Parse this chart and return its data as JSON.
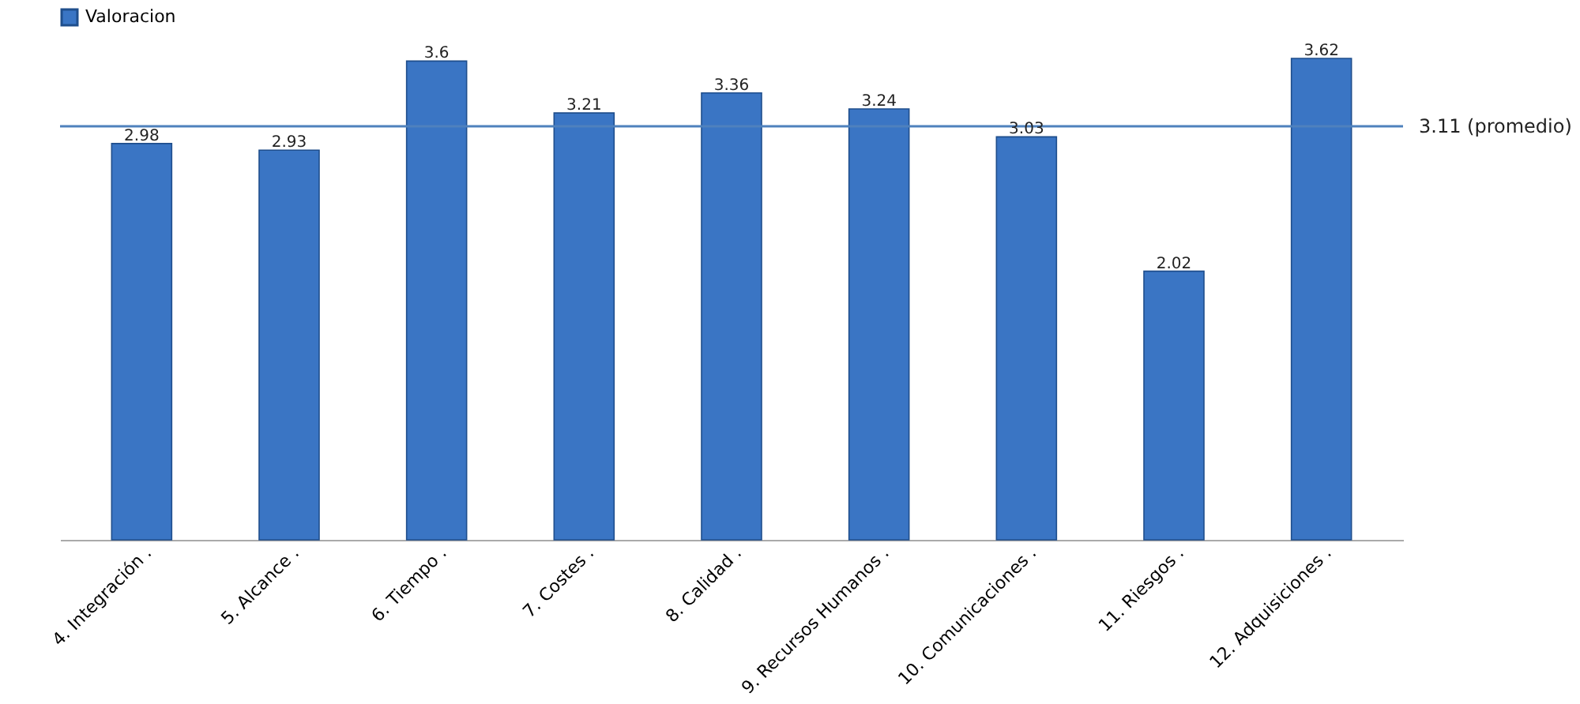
{
  "chart_data": {
    "type": "bar",
    "categories": [
      "4. Integración .",
      "5. Alcance .",
      "6. Tiempo .",
      "7. Costes .",
      "8. Calidad .",
      "9. Recursos Humanos .",
      "10. Comunicaciones .",
      "11. Riesgos .",
      "12. Adquisiciones ."
    ],
    "series": [
      {
        "name": "Valoracion",
        "color": "#3a75c4",
        "values": [
          2.98,
          2.93,
          3.6,
          3.21,
          3.36,
          3.24,
          3.03,
          2.02,
          3.62
        ]
      }
    ],
    "data_labels": true,
    "legend": "top",
    "ref_lines": [
      {
        "axis": "y",
        "value": 3.11,
        "label": "3.11 (promedio)",
        "color": "#4f81bd"
      }
    ],
    "tick_labels": "x"
  }
}
